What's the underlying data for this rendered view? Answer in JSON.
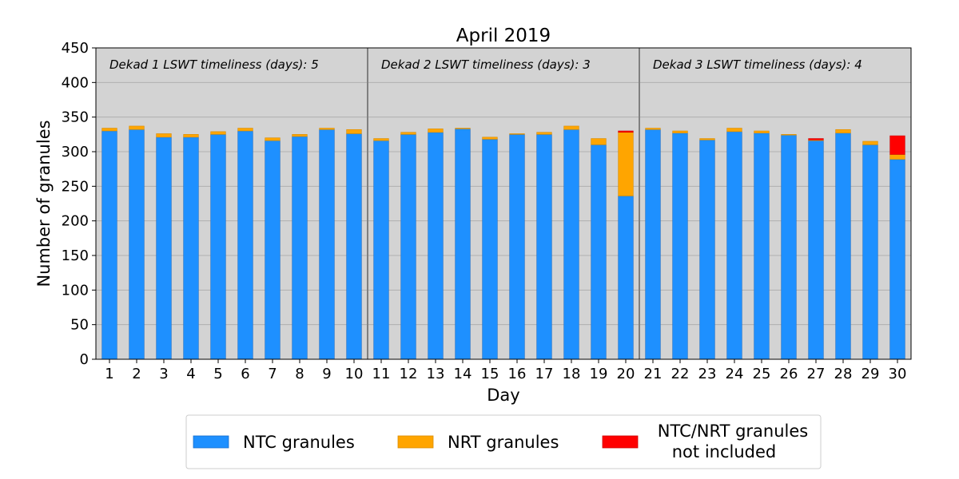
{
  "chart_data": {
    "type": "bar",
    "stacked": true,
    "title": "April 2019",
    "xlabel": "Day",
    "ylabel": "Number of granules",
    "ylim": [
      0,
      450
    ],
    "yticks": [
      0,
      50,
      100,
      150,
      200,
      250,
      300,
      350,
      400,
      450
    ],
    "grid": "horizontal",
    "background": "#d3d3d3",
    "categories": [
      "1",
      "2",
      "3",
      "4",
      "5",
      "6",
      "7",
      "8",
      "9",
      "10",
      "11",
      "12",
      "13",
      "14",
      "15",
      "16",
      "17",
      "18",
      "19",
      "20",
      "21",
      "22",
      "23",
      "24",
      "25",
      "26",
      "27",
      "28",
      "29",
      "30"
    ],
    "series": [
      {
        "name": "NTC granules",
        "color": "#1e90ff",
        "values": [
          330,
          332,
          321,
          321,
          325,
          330,
          316,
          322,
          332,
          326,
          316,
          325,
          328,
          333,
          318,
          325,
          325,
          332,
          310,
          236,
          332,
          327,
          317,
          329,
          327,
          324,
          316,
          327,
          310,
          289
        ]
      },
      {
        "name": "NRT granules",
        "color": "#ffa500",
        "values": [
          4,
          5,
          5,
          4,
          4,
          4,
          4,
          3,
          2,
          6,
          3,
          3,
          5,
          1,
          3,
          1,
          3,
          5,
          9,
          92,
          2,
          3,
          2,
          5,
          3,
          1,
          1,
          5,
          5,
          7
        ]
      },
      {
        "name": "NTC/NRT granules\n   not included",
        "label_lines": [
          "NTC/NRT granules",
          "not included"
        ],
        "color": "#ff0000",
        "values": [
          0,
          0,
          0,
          0,
          0,
          0,
          0,
          0,
          0,
          0,
          0,
          0,
          0,
          0,
          0,
          0,
          0,
          0,
          0,
          2,
          0,
          0,
          0,
          0,
          0,
          0,
          2,
          0,
          0,
          27
        ]
      }
    ],
    "dekads": [
      {
        "label": "Dekad 1 LSWT timeliness (days): 5",
        "start_day": 1,
        "end_day": 10
      },
      {
        "label": "Dekad 2 LSWT timeliness (days): 3",
        "start_day": 11,
        "end_day": 20
      },
      {
        "label": "Dekad 3 LSWT timeliness (days): 4",
        "start_day": 21,
        "end_day": 30
      }
    ],
    "legend_position": "bottom"
  }
}
